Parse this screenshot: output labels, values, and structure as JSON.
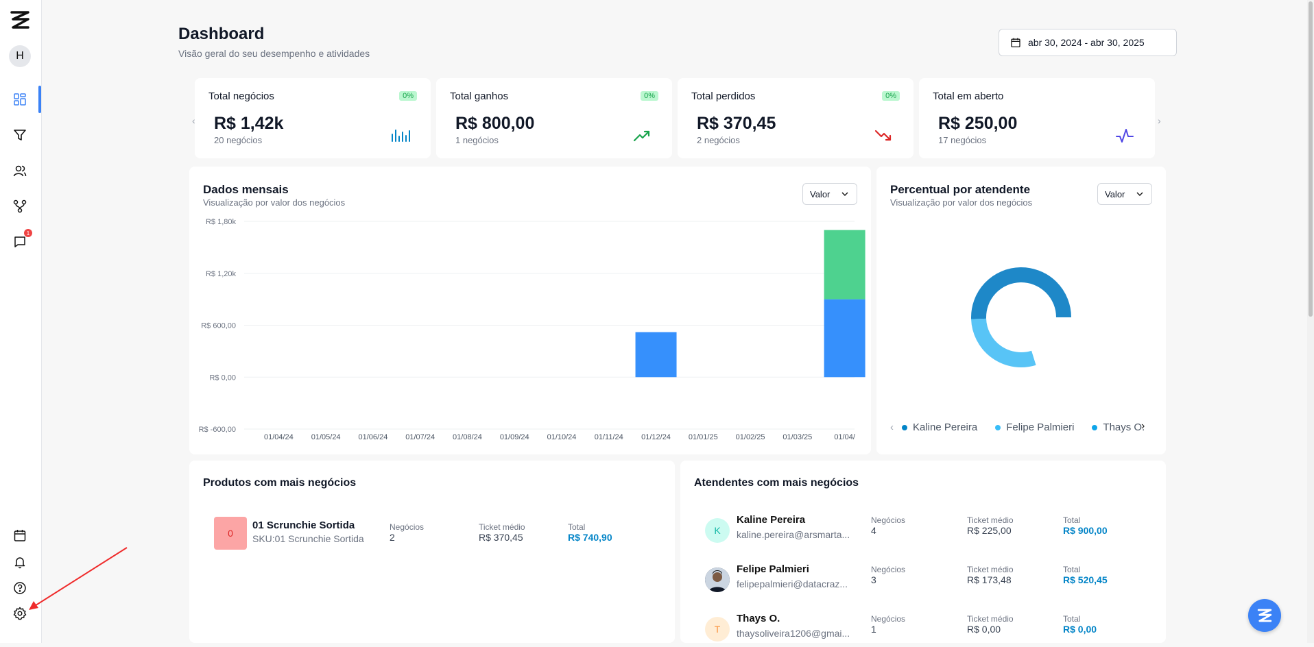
{
  "sidebar": {
    "avatar_initial": "H",
    "notification_badge": "1",
    "items": [
      "dashboard",
      "funnel",
      "contacts",
      "integrations",
      "messages"
    ],
    "bottom_items": [
      "calendar",
      "notifications",
      "help",
      "settings"
    ]
  },
  "header": {
    "title": "Dashboard",
    "subtitle": "Visão geral do seu desempenho e atividades",
    "date_range": "abr 30, 2024 - abr 30, 2025"
  },
  "kpis": [
    {
      "title": "Total negócios",
      "pct": "0%",
      "value": "R$ 1,42k",
      "count": "20 negócios",
      "icon": "bar-chart-icon",
      "color": "#0284c7"
    },
    {
      "title": "Total ganhos",
      "pct": "0%",
      "value": "R$ 800,00",
      "count": "1 negócios",
      "icon": "trending-up-icon",
      "color": "#16a34a"
    },
    {
      "title": "Total perdidos",
      "pct": "0%",
      "value": "R$ 370,45",
      "count": "2 negócios",
      "icon": "trending-down-icon",
      "color": "#dc2626"
    },
    {
      "title": "Total em aberto",
      "pct": "",
      "value": "R$ 250,00",
      "count": "17 negócios",
      "icon": "activity-icon",
      "color": "#4f46e5"
    }
  ],
  "monthly": {
    "title": "Dados mensais",
    "subtitle": "Visualização por valor dos negócios",
    "select_value": "Valor"
  },
  "chart_data": {
    "type": "bar",
    "stacked": true,
    "categories": [
      "01/04/24",
      "01/05/24",
      "01/06/24",
      "01/07/24",
      "01/08/24",
      "01/09/24",
      "01/10/24",
      "01/11/24",
      "01/12/24",
      "01/01/25",
      "01/02/25",
      "01/03/25",
      "01/04/"
    ],
    "series": [
      {
        "name": "",
        "color": "#3690fc",
        "values": [
          0,
          0,
          0,
          0,
          0,
          0,
          0,
          0,
          520,
          0,
          0,
          0,
          900
        ]
      },
      {
        "name": "",
        "color": "#4ed28f",
        "values": [
          0,
          0,
          0,
          0,
          0,
          0,
          0,
          0,
          0,
          0,
          0,
          0,
          800
        ]
      }
    ],
    "yticks": [
      "R$ 1,80k",
      "R$ 1,20k",
      "R$ 600,00",
      "R$ 0,00",
      "R$ -600,00"
    ],
    "ytick_values": [
      1800,
      1200,
      600,
      0,
      -600
    ],
    "ylim": [
      -600,
      1800
    ],
    "grid": true
  },
  "percent": {
    "title": "Percentual por atendente",
    "subtitle": "Visualização por valor dos negócios",
    "select_value": "Valor",
    "legend": [
      {
        "name": "Kaline Pereira",
        "color": "#0284c7"
      },
      {
        "name": "Felipe Palmieri",
        "color": "#38bdf8"
      },
      {
        "name": "Thays O.",
        "color": "#0ea5e9"
      }
    ],
    "donut_fractions": [
      0.634,
      0.366
    ]
  },
  "products": {
    "title": "Produtos com mais negócios",
    "rows": [
      {
        "thumb": "0",
        "name": "01 Scrunchie Sortida",
        "sku": "SKU:01 Scrunchie Sortida",
        "deals_label": "Negócios",
        "deals": "2",
        "ticket_label": "Ticket médio",
        "ticket": "R$ 370,45",
        "total_label": "Total",
        "total": "R$ 740,90"
      }
    ]
  },
  "agents": {
    "title": "Atendentes com mais negócios",
    "rows": [
      {
        "initial": "K",
        "name": "Kaline Pereira",
        "email": "kaline.pereira@arsmarta...",
        "deals_label": "Negócios",
        "deals": "4",
        "ticket_label": "Ticket médio",
        "ticket": "R$ 225,00",
        "total_label": "Total",
        "total": "R$ 900,00"
      },
      {
        "initial": "",
        "name": "Felipe Palmieri",
        "email": "felipepalmieri@datacraz...",
        "deals_label": "Negócios",
        "deals": "3",
        "ticket_label": "Ticket médio",
        "ticket": "R$ 173,48",
        "total_label": "Total",
        "total": "R$ 520,45"
      },
      {
        "initial": "T",
        "name": "Thays O.",
        "email": "thaysoliveira1206@gmai...",
        "deals_label": "Negócios",
        "deals": "1",
        "ticket_label": "Ticket médio",
        "ticket": "R$ 0,00",
        "total_label": "Total",
        "total": "R$ 0,00"
      }
    ]
  }
}
